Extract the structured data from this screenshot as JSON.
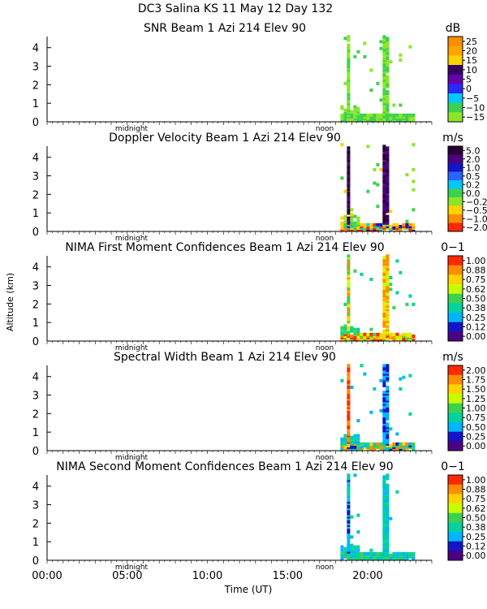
{
  "figure": {
    "title": "DC3 Salina KS  11 May 12 Day 132",
    "ylabel": "Altitude (km)",
    "xlabel": "Time (UT)",
    "xticks": [
      "00:00",
      "05:00",
      "10:00",
      "15:00",
      "20:00"
    ],
    "midnight_label": "midnight",
    "noon_label": "noon"
  },
  "chart_data": [
    {
      "type": "heatmap",
      "title": "SNR Beam 1 Azi 214 Elev 90",
      "units": "dB",
      "ylim": [
        0,
        4.6
      ],
      "yticks": [
        "0",
        "1",
        "2",
        "3",
        "4"
      ],
      "colorbar": {
        "labels": [
          "25",
          "20",
          "15",
          "10",
          "5",
          "0",
          "−5",
          "−10",
          "−15"
        ],
        "colors": [
          "#ff8c00",
          "#ffa500",
          "#ffd200",
          "#330066",
          "#6600aa",
          "#2828ff",
          "#00c8ff",
          "#3cd250",
          "#8ce628"
        ]
      },
      "data_window_utc_hours": [
        18.3,
        22.8
      ]
    },
    {
      "type": "heatmap",
      "title": "Doppler Velocity Beam 1 Azi 214 Elev 90",
      "units": "m/s",
      "ylim": [
        0,
        4.6
      ],
      "yticks": [
        "0",
        "1",
        "2",
        "3",
        "4"
      ],
      "colorbar": {
        "labels": [
          "5.0",
          "2.0",
          "1.0",
          "0.5",
          "0.2",
          "0.0",
          "−0.2",
          "−0.5",
          "−1.0",
          "−2.0"
        ],
        "colors": [
          "#2a0033",
          "#4b0082",
          "#1414c8",
          "#2864ff",
          "#00c8ff",
          "#3cd250",
          "#8ce628",
          "#ffd200",
          "#ff8c00",
          "#ff2800"
        ]
      },
      "data_window_utc_hours": [
        18.3,
        22.8
      ]
    },
    {
      "type": "heatmap",
      "title": "NIMA First Moment Confidences Beam 1 Azi 214 Elev 90",
      "units": "0−1",
      "ylim": [
        0,
        4.6
      ],
      "yticks": [
        "0",
        "1",
        "2",
        "3",
        "4"
      ],
      "colorbar": {
        "labels": [
          "1.00",
          "0.88",
          "0.75",
          "0.62",
          "0.50",
          "0.38",
          "0.25",
          "0.12",
          "0.00"
        ],
        "colors": [
          "#ff2800",
          "#ff8c00",
          "#ffd200",
          "#c8ff00",
          "#3cd250",
          "#00d2a0",
          "#00b4ff",
          "#1414c8",
          "#4b0082"
        ]
      },
      "data_window_utc_hours": [
        18.3,
        22.8
      ]
    },
    {
      "type": "heatmap",
      "title": "Spectral Width Beam 1 Azi 214 Elev 90",
      "units": "m/s",
      "ylim": [
        0,
        4.6
      ],
      "yticks": [
        "0",
        "1",
        "2",
        "3",
        "4"
      ],
      "colorbar": {
        "labels": [
          "2.00",
          "1.75",
          "1.50",
          "1.25",
          "1.00",
          "0.75",
          "0.50",
          "0.25",
          "0.00"
        ],
        "colors": [
          "#ff2800",
          "#ff8c00",
          "#ffd200",
          "#c8ff00",
          "#3cd250",
          "#00d2a0",
          "#00b4ff",
          "#1414c8",
          "#4b0082"
        ]
      },
      "data_window_utc_hours": [
        18.3,
        22.8
      ]
    },
    {
      "type": "heatmap",
      "title": "NIMA Second Moment Confidences Beam 1 Azi 214 Elev 90",
      "units": "0−1",
      "ylim": [
        0,
        4.6
      ],
      "yticks": [
        "0",
        "1",
        "2",
        "3",
        "4"
      ],
      "colorbar": {
        "labels": [
          "1.00",
          "0.88",
          "0.75",
          "0.62",
          "0.50",
          "0.38",
          "0.25",
          "0.12",
          "0.00"
        ],
        "colors": [
          "#ff2800",
          "#ff8c00",
          "#ffd200",
          "#c8ff00",
          "#3cd250",
          "#00d2a0",
          "#00b4ff",
          "#1414c8",
          "#4b0082"
        ]
      },
      "data_window_utc_hours": [
        18.3,
        22.8
      ]
    }
  ]
}
